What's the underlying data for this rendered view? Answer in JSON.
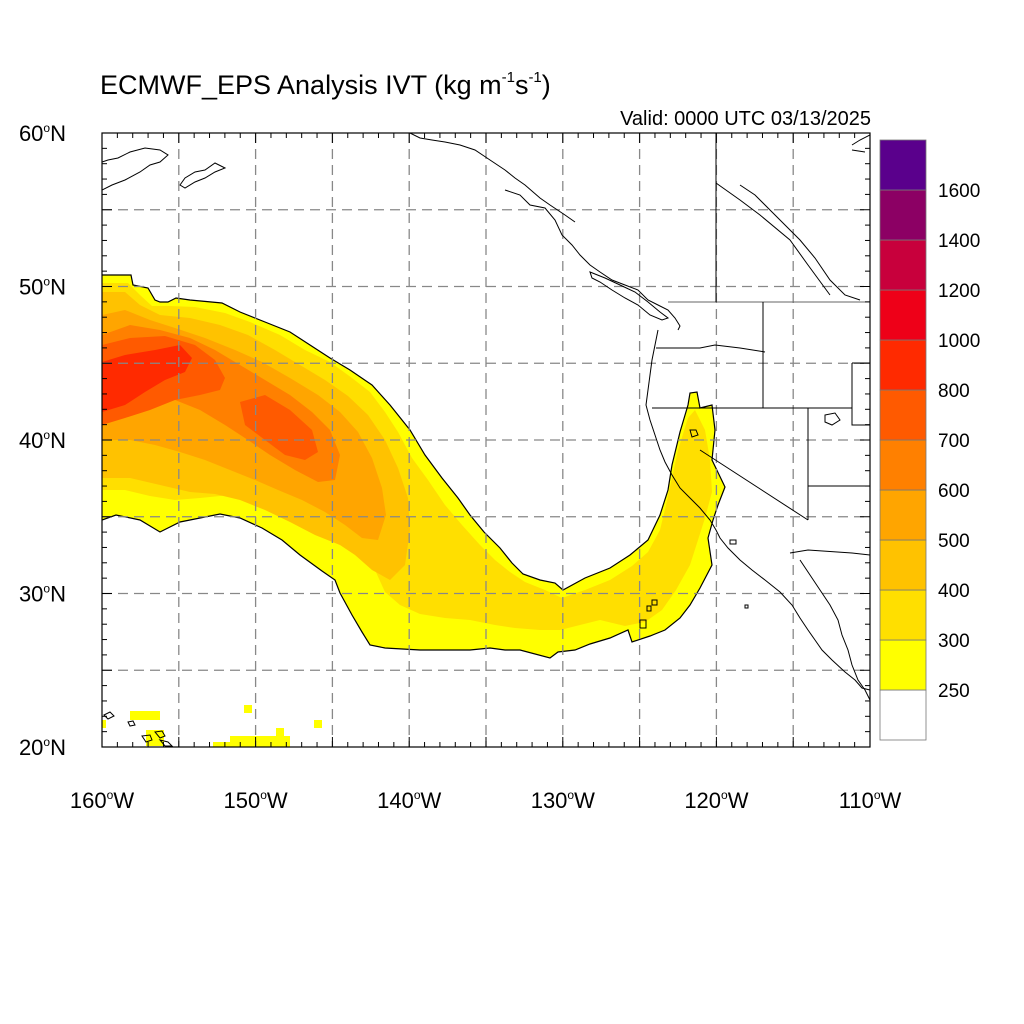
{
  "title": {
    "main": "ECMWF_EPS Analysis IVT (kg m",
    "sup1": "-1",
    "mid": "s",
    "sup2": "-1",
    "end": ")"
  },
  "valid_text": "Valid: 0000 UTC 03/13/2025",
  "map": {
    "lon_range": [
      -160,
      -110
    ],
    "lat_range": [
      20,
      60
    ],
    "lon_labels": [
      {
        "lon": -160,
        "deg": "160",
        "dir": "W"
      },
      {
        "lon": -150,
        "deg": "150",
        "dir": "W"
      },
      {
        "lon": -140,
        "deg": "140",
        "dir": "W"
      },
      {
        "lon": -130,
        "deg": "130",
        "dir": "W"
      },
      {
        "lon": -120,
        "deg": "120",
        "dir": "W"
      },
      {
        "lon": -110,
        "deg": "110",
        "dir": "W"
      }
    ],
    "lat_labels": [
      {
        "lat": 20,
        "deg": "20",
        "dir": "N"
      },
      {
        "lat": 30,
        "deg": "30",
        "dir": "N"
      },
      {
        "lat": 40,
        "deg": "40",
        "dir": "N"
      },
      {
        "lat": 50,
        "deg": "50",
        "dir": "N"
      },
      {
        "lat": 60,
        "deg": "60",
        "dir": "N"
      }
    ],
    "grid_spacing_deg": 5,
    "gridlines": "dashed"
  },
  "colorbar": {
    "labels": [
      "250",
      "300",
      "400",
      "500",
      "600",
      "700",
      "800",
      "1000",
      "1200",
      "1400",
      "1600"
    ],
    "colors_bottom_to_top": [
      "#ffffff",
      "#ffff00",
      "#ffdf00",
      "#ffc200",
      "#ffa500",
      "#ff8000",
      "#ff5a00",
      "#ff2a00",
      "#ee0018",
      "#c8003c",
      "#8c0064",
      "#5a008c"
    ]
  }
}
